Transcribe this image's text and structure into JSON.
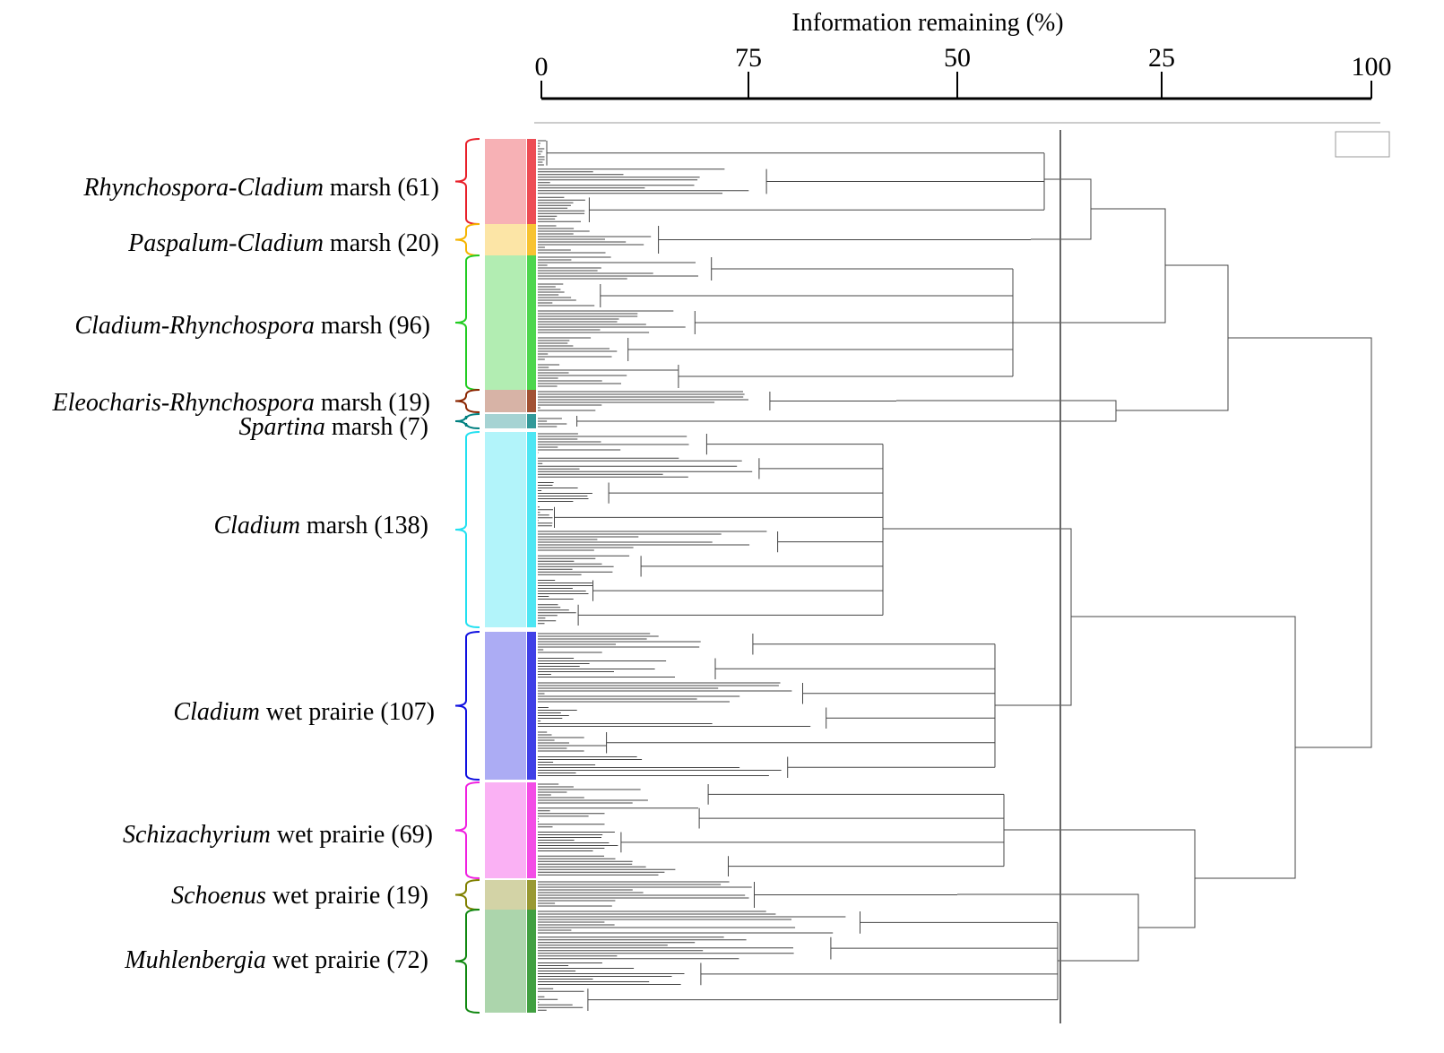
{
  "axis": {
    "title": "Information remaining (%)",
    "ticks": [
      "0",
      "75",
      "50",
      "25",
      "100"
    ]
  },
  "groups": [
    {
      "genus": "Rhynchospora-Cladium",
      "rest": "marsh (61)",
      "color": "#e8202a"
    },
    {
      "genus": "Paspalum-Cladium",
      "rest": "marsh (20)",
      "color": "#f5b400"
    },
    {
      "genus": "Cladium-Rhynchospora",
      "rest": "marsh (96)",
      "color": "#22cc22"
    },
    {
      "genus": "Eleocharis-Rhynchospora",
      "rest": "marsh (19)",
      "color": "#8b2500"
    },
    {
      "genus": "Spartina",
      "rest": "marsh (7)",
      "color": "#008080"
    },
    {
      "genus": "Cladium",
      "rest": "marsh (138)",
      "color": "#22e0f0"
    },
    {
      "genus": "Cladium",
      "rest": "wet prairie (107)",
      "color": "#1010e0"
    },
    {
      "genus": "Schizachyrium",
      "rest": "wet prairie (69)",
      "color": "#f020e0"
    },
    {
      "genus": "Schoenus",
      "rest": "wet prairie (19)",
      "color": "#808000"
    },
    {
      "genus": "Muhlenbergia",
      "rest": "wet prairie (72)",
      "color": "#118811"
    }
  ]
}
